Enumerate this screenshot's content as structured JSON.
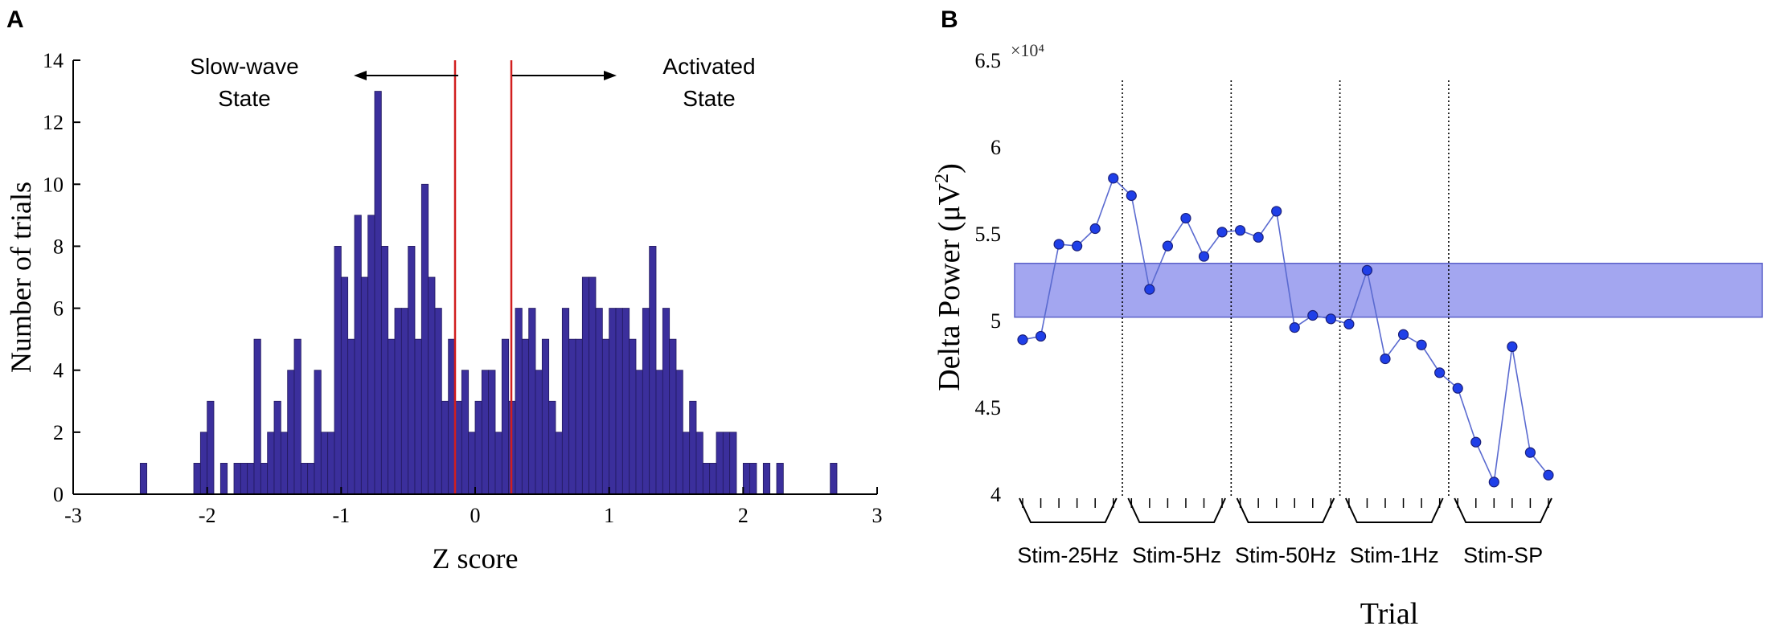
{
  "colors": {
    "bar_fill": "#3b2f9c",
    "bar_stroke": "#22185e",
    "threshold_line": "#d11f1f",
    "band_fill": "#a3a6f0",
    "band_stroke": "#5a60c8",
    "marker_fill": "#1f3fe8",
    "marker_stroke": "#1a1f7a",
    "series_line": "#5a6ad0"
  },
  "panel_a": {
    "label": "A",
    "arrow_left_label_line1": "Slow-wave",
    "arrow_left_label_line2": "State",
    "arrow_right_label_line1": "Activated",
    "arrow_right_label_line2": "State"
  },
  "panel_b": {
    "label": "B",
    "exponent_label": "×10⁴"
  },
  "chart_data": [
    {
      "type": "bar",
      "title": "",
      "xlabel": "Z score",
      "ylabel": "Number of trials",
      "xlim": [
        -3,
        3
      ],
      "ylim": [
        0,
        14
      ],
      "xticks": [
        "-3",
        "-2",
        "-1",
        "0",
        "1",
        "2",
        "3"
      ],
      "yticks": [
        "0",
        "2",
        "4",
        "6",
        "8",
        "10",
        "12",
        "14"
      ],
      "bin_start": -2.5,
      "bin_width": 0.05,
      "counts": [
        1,
        0,
        0,
        0,
        0,
        0,
        0,
        0,
        1,
        2,
        3,
        0,
        1,
        0,
        1,
        1,
        1,
        5,
        1,
        2,
        3,
        2,
        4,
        5,
        1,
        1,
        4,
        2,
        2,
        8,
        7,
        5,
        9,
        7,
        9,
        13,
        8,
        5,
        6,
        6,
        8,
        5,
        10,
        7,
        6,
        3,
        5,
        3,
        4,
        2,
        3,
        4,
        4,
        2,
        5,
        3,
        6,
        5,
        6,
        4,
        5,
        3,
        2,
        6,
        5,
        5,
        7,
        7,
        6,
        5,
        6,
        6,
        6,
        5,
        4,
        6,
        8,
        4,
        6,
        5,
        4,
        2,
        3,
        2,
        1,
        1,
        2,
        2,
        2,
        0,
        1,
        1,
        0,
        1,
        0,
        1,
        0,
        0,
        0,
        0,
        0,
        0,
        0,
        1
      ],
      "thresholds": [
        -0.15,
        0.27
      ],
      "annotations": [
        {
          "text": "Slow-wave State",
          "arrow": "left"
        },
        {
          "text": "Activated State",
          "arrow": "right"
        }
      ]
    },
    {
      "type": "line",
      "title": "",
      "xlabel": "Trial",
      "ylabel": "Delta Power (μV²)",
      "ylabel_main": "Delta Power (",
      "ylabel_unit": "μV",
      "ylabel_exp": "2",
      "ylabel_close": ")",
      "y_scale_label": "×10⁴",
      "ylim": [
        4.0,
        6.5
      ],
      "yticks": [
        "4",
        "4.5",
        "5",
        "5.5",
        "6",
        "6.5"
      ],
      "band": [
        5.02,
        5.33
      ],
      "series": [
        {
          "name": "Delta Power",
          "values": [
            4.89,
            4.91,
            5.44,
            5.43,
            5.53,
            5.82,
            5.72,
            5.18,
            5.43,
            5.59,
            5.37,
            5.51,
            5.52,
            5.48,
            5.63,
            4.96,
            5.03,
            5.01,
            4.98,
            5.29,
            4.78,
            4.92,
            4.86,
            4.7,
            4.61,
            4.3,
            4.07,
            4.85,
            4.24,
            4.11
          ]
        }
      ],
      "groups": [
        {
          "label": "Stim-25Hz",
          "n": 6
        },
        {
          "label": "Stim-5Hz",
          "n": 6
        },
        {
          "label": "Stim-50Hz",
          "n": 6
        },
        {
          "label": "Stim-1Hz",
          "n": 6
        },
        {
          "label": "Stim-SP",
          "n": 6
        }
      ]
    }
  ]
}
